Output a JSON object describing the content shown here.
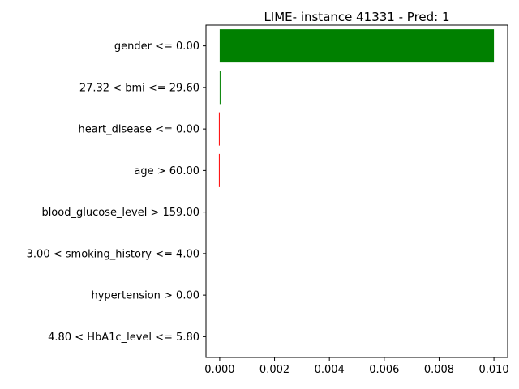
{
  "chart_data": {
    "type": "bar",
    "orientation": "horizontal",
    "title": "LIME- instance 41331 - Pred: 1",
    "xlabel": "",
    "ylabel": "",
    "categories": [
      "gender <= 0.00",
      "27.32 < bmi <= 29.60",
      "heart_disease <= 0.00",
      "age > 60.00",
      "blood_glucose_level > 159.00",
      "3.00 < smoking_history <= 4.00",
      "hypertension > 0.00",
      "4.80 < HbA1c_level <= 5.80"
    ],
    "values": [
      0.01,
      3e-05,
      -2e-05,
      -2e-05,
      0.0,
      0.0,
      0.0,
      0.0
    ],
    "xlim": [
      -0.0005,
      0.0105
    ],
    "xticks": [
      "0.000",
      "0.002",
      "0.004",
      "0.006",
      "0.008",
      "0.010"
    ],
    "xtick_values": [
      0.0,
      0.002,
      0.004,
      0.006,
      0.008,
      0.01
    ],
    "positive_color": "#008000",
    "negative_color": "#ff0000",
    "grid": false,
    "legend": false
  }
}
